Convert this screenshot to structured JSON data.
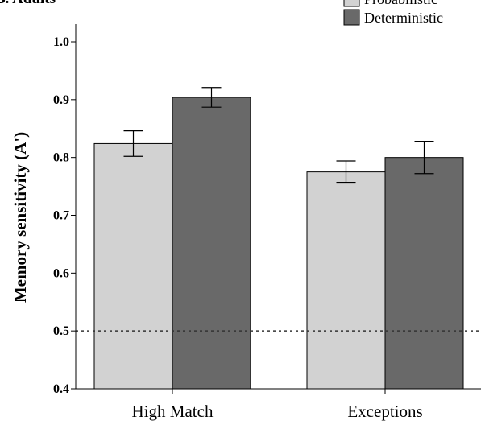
{
  "panel_label": "B. Adults",
  "chart_data": {
    "type": "bar",
    "categories": [
      "High Match",
      "Exceptions"
    ],
    "series": [
      {
        "name": "Probabilistic",
        "values": [
          0.824,
          0.775
        ],
        "err_low": [
          0.802,
          0.757
        ],
        "err_high": [
          0.846,
          0.794
        ]
      },
      {
        "name": "Deterministic",
        "values": [
          0.904,
          0.8
        ],
        "err_low": [
          0.887,
          0.772
        ],
        "err_high": [
          0.921,
          0.828
        ]
      }
    ],
    "xlabel": "",
    "ylabel": "Memory sensitivity (A')",
    "ylim": [
      0.4,
      1.05
    ],
    "yticks": [
      "0.4",
      "0.5",
      "0.6",
      "0.7",
      "0.8",
      "0.9",
      "1.0"
    ],
    "reference_line": {
      "value": 0.5,
      "style": "dotted"
    },
    "colors": {
      "Probabilistic": "#d2d2d2",
      "Deterministic": "#696969"
    },
    "legend_position": "top-right",
    "grid": false
  }
}
